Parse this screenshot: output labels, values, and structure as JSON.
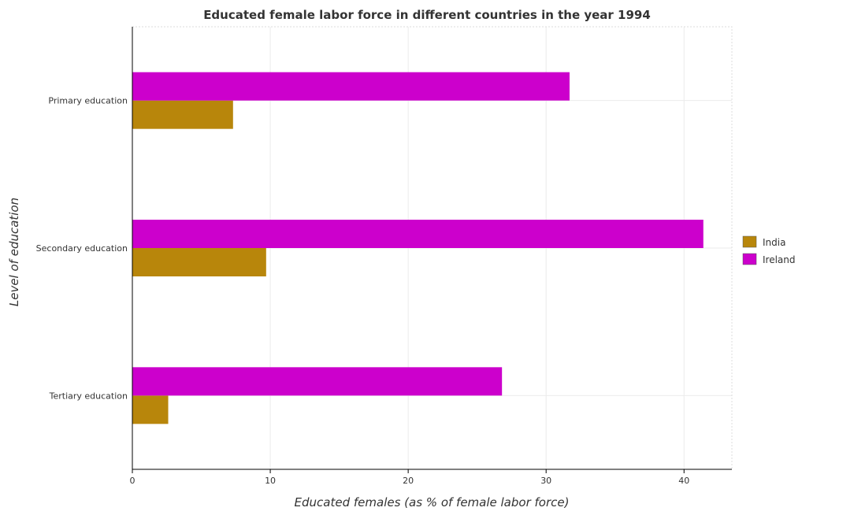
{
  "chart_data": {
    "type": "bar",
    "orientation": "horizontal",
    "title": "Educated female labor force in different countries in the year 1994",
    "xlabel": "Educated females (as % of female labor force)",
    "ylabel": "Level of education",
    "categories": [
      "Primary education",
      "Secondary education",
      "Tertiary education"
    ],
    "series": [
      {
        "name": "India",
        "color": "#b8860b",
        "values": [
          7.3,
          9.7,
          2.6
        ]
      },
      {
        "name": "Ireland",
        "color": "#cc00cc",
        "values": [
          31.7,
          41.4,
          26.8
        ]
      }
    ],
    "xlim": [
      0,
      43.47
    ],
    "xticks": [
      0,
      10,
      20,
      30,
      40
    ],
    "grid": true,
    "legend_position": "right"
  }
}
